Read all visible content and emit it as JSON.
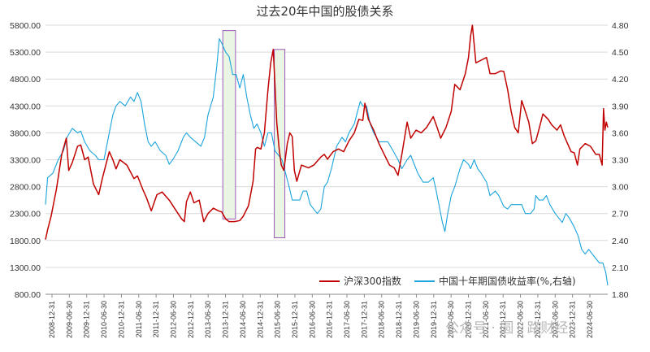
{
  "chart_data": {
    "type": "line",
    "title": "过去20年中国的股债关系",
    "y_left": {
      "ylim": [
        800,
        5800
      ],
      "ticks": [
        "800.00",
        "1300.00",
        "1800.00",
        "2300.00",
        "2800.00",
        "3300.00",
        "3800.00",
        "4300.00",
        "4800.00",
        "5300.00",
        "5800.00"
      ]
    },
    "y_right": {
      "ylim": [
        1.8,
        4.8
      ],
      "ticks": [
        "1.80",
        "2.10",
        "2.40",
        "2.70",
        "3.00",
        "3.30",
        "3.60",
        "3.90",
        "4.20",
        "4.50",
        "4.80"
      ]
    },
    "x_ticks": [
      "2008-12-31",
      "2009-06-30",
      "2009-12-31",
      "2010-06-30",
      "2010-12-31",
      "2011-06-30",
      "2011-12-31",
      "2012-06-30",
      "2012-12-31",
      "2013-06-30",
      "2013-12-31",
      "2014-06-30",
      "2014-12-31",
      "2015-06-30",
      "2015-12-31",
      "2016-06-30",
      "2016-12-31",
      "2017-06-30",
      "2017-12-31",
      "2018-06-30",
      "2018-12-31",
      "2019-06-30",
      "2019-12-31",
      "2020-06-30",
      "2020-12-31",
      "2021-06-30",
      "2021-12-31",
      "2022-06-30",
      "2022-12-31",
      "2023-06-30",
      "2023-12-31",
      "2024-06-30"
    ],
    "x_range": [
      2008.99,
      2024.94
    ],
    "grid": "horizontal",
    "legend_position": "bottom-right",
    "series": [
      {
        "name": "沪深300指数",
        "axis": "left",
        "color": "#c00000",
        "points": [
          [
            2008.99,
            1817
          ],
          [
            2009.05,
            2000
          ],
          [
            2009.15,
            2250
          ],
          [
            2009.3,
            2750
          ],
          [
            2009.45,
            3400
          ],
          [
            2009.58,
            3700
          ],
          [
            2009.65,
            3100
          ],
          [
            2009.75,
            3250
          ],
          [
            2009.9,
            3550
          ],
          [
            2009.99,
            3575
          ],
          [
            2010.1,
            3300
          ],
          [
            2010.2,
            3350
          ],
          [
            2010.35,
            2850
          ],
          [
            2010.5,
            2650
          ],
          [
            2010.6,
            2950
          ],
          [
            2010.8,
            3450
          ],
          [
            2010.9,
            3300
          ],
          [
            2010.99,
            3130
          ],
          [
            2011.1,
            3300
          ],
          [
            2011.3,
            3200
          ],
          [
            2011.5,
            2950
          ],
          [
            2011.6,
            3000
          ],
          [
            2011.75,
            2750
          ],
          [
            2011.85,
            2600
          ],
          [
            2011.99,
            2350
          ],
          [
            2012.15,
            2650
          ],
          [
            2012.3,
            2700
          ],
          [
            2012.5,
            2550
          ],
          [
            2012.7,
            2350
          ],
          [
            2012.85,
            2200
          ],
          [
            2012.93,
            2150
          ],
          [
            2012.99,
            2520
          ],
          [
            2013.1,
            2700
          ],
          [
            2013.2,
            2500
          ],
          [
            2013.35,
            2550
          ],
          [
            2013.48,
            2150
          ],
          [
            2013.6,
            2300
          ],
          [
            2013.75,
            2400
          ],
          [
            2013.9,
            2350
          ],
          [
            2013.99,
            2330
          ],
          [
            2014.1,
            2200
          ],
          [
            2014.2,
            2150
          ],
          [
            2014.35,
            2150
          ],
          [
            2014.5,
            2170
          ],
          [
            2014.6,
            2250
          ],
          [
            2014.75,
            2450
          ],
          [
            2014.88,
            2900
          ],
          [
            2014.95,
            3500
          ],
          [
            2015.0,
            3530
          ],
          [
            2015.1,
            3500
          ],
          [
            2015.2,
            3800
          ],
          [
            2015.3,
            4600
          ],
          [
            2015.38,
            5100
          ],
          [
            2015.45,
            5350
          ],
          [
            2015.5,
            4700
          ],
          [
            2015.55,
            4000
          ],
          [
            2015.62,
            3500
          ],
          [
            2015.68,
            3200
          ],
          [
            2015.75,
            3100
          ],
          [
            2015.85,
            3600
          ],
          [
            2015.92,
            3800
          ],
          [
            2015.99,
            3730
          ],
          [
            2016.05,
            3100
          ],
          [
            2016.12,
            2900
          ],
          [
            2016.25,
            3200
          ],
          [
            2016.45,
            3150
          ],
          [
            2016.6,
            3200
          ],
          [
            2016.8,
            3350
          ],
          [
            2016.9,
            3400
          ],
          [
            2016.99,
            3310
          ],
          [
            2017.15,
            3450
          ],
          [
            2017.3,
            3500
          ],
          [
            2017.45,
            3450
          ],
          [
            2017.6,
            3650
          ],
          [
            2017.75,
            3800
          ],
          [
            2017.88,
            4050
          ],
          [
            2017.99,
            4030
          ],
          [
            2018.05,
            4350
          ],
          [
            2018.15,
            4050
          ],
          [
            2018.3,
            3850
          ],
          [
            2018.45,
            3600
          ],
          [
            2018.6,
            3400
          ],
          [
            2018.75,
            3200
          ],
          [
            2018.88,
            3150
          ],
          [
            2018.99,
            3010
          ],
          [
            2019.1,
            3400
          ],
          [
            2019.25,
            4000
          ],
          [
            2019.35,
            3700
          ],
          [
            2019.5,
            3850
          ],
          [
            2019.65,
            3800
          ],
          [
            2019.8,
            3900
          ],
          [
            2019.99,
            4100
          ],
          [
            2020.1,
            3900
          ],
          [
            2020.2,
            3700
          ],
          [
            2020.35,
            3900
          ],
          [
            2020.5,
            4200
          ],
          [
            2020.6,
            4700
          ],
          [
            2020.75,
            4600
          ],
          [
            2020.9,
            4900
          ],
          [
            2020.99,
            5200
          ],
          [
            2021.05,
            5600
          ],
          [
            2021.1,
            5800
          ],
          [
            2021.2,
            5100
          ],
          [
            2021.35,
            5150
          ],
          [
            2021.5,
            5200
          ],
          [
            2021.6,
            4900
          ],
          [
            2021.75,
            4900
          ],
          [
            2021.9,
            4950
          ],
          [
            2021.99,
            4940
          ],
          [
            2022.1,
            4600
          ],
          [
            2022.2,
            4200
          ],
          [
            2022.3,
            3900
          ],
          [
            2022.4,
            3800
          ],
          [
            2022.5,
            4400
          ],
          [
            2022.6,
            4200
          ],
          [
            2022.7,
            4000
          ],
          [
            2022.8,
            3600
          ],
          [
            2022.9,
            3650
          ],
          [
            2022.99,
            3870
          ],
          [
            2023.1,
            4150
          ],
          [
            2023.25,
            4050
          ],
          [
            2023.35,
            3950
          ],
          [
            2023.5,
            3850
          ],
          [
            2023.6,
            3950
          ],
          [
            2023.7,
            3750
          ],
          [
            2023.8,
            3600
          ],
          [
            2023.9,
            3450
          ],
          [
            2023.99,
            3430
          ],
          [
            2024.08,
            3200
          ],
          [
            2024.15,
            3500
          ],
          [
            2024.3,
            3600
          ],
          [
            2024.45,
            3550
          ],
          [
            2024.6,
            3400
          ],
          [
            2024.7,
            3400
          ],
          [
            2024.78,
            3200
          ],
          [
            2024.82,
            4250
          ],
          [
            2024.86,
            3850
          ],
          [
            2024.9,
            4000
          ],
          [
            2024.94,
            3900
          ]
        ]
      },
      {
        "name": "中国十年期国债收益率(%,右轴)",
        "axis": "right",
        "color": "#1aa3dc",
        "points": [
          [
            2008.99,
            2.8
          ],
          [
            2009.05,
            3.1
          ],
          [
            2009.2,
            3.15
          ],
          [
            2009.35,
            3.3
          ],
          [
            2009.5,
            3.4
          ],
          [
            2009.6,
            3.55
          ],
          [
            2009.75,
            3.65
          ],
          [
            2009.9,
            3.6
          ],
          [
            2009.99,
            3.62
          ],
          [
            2010.1,
            3.5
          ],
          [
            2010.25,
            3.4
          ],
          [
            2010.4,
            3.35
          ],
          [
            2010.5,
            3.3
          ],
          [
            2010.65,
            3.3
          ],
          [
            2010.8,
            3.6
          ],
          [
            2010.9,
            3.8
          ],
          [
            2010.99,
            3.9
          ],
          [
            2011.1,
            3.95
          ],
          [
            2011.25,
            3.9
          ],
          [
            2011.4,
            4.0
          ],
          [
            2011.5,
            3.95
          ],
          [
            2011.6,
            4.05
          ],
          [
            2011.7,
            3.95
          ],
          [
            2011.8,
            3.7
          ],
          [
            2011.9,
            3.5
          ],
          [
            2011.99,
            3.45
          ],
          [
            2012.1,
            3.5
          ],
          [
            2012.25,
            3.4
          ],
          [
            2012.4,
            3.35
          ],
          [
            2012.5,
            3.25
          ],
          [
            2012.6,
            3.3
          ],
          [
            2012.75,
            3.4
          ],
          [
            2012.9,
            3.55
          ],
          [
            2012.99,
            3.6
          ],
          [
            2013.1,
            3.55
          ],
          [
            2013.25,
            3.5
          ],
          [
            2013.4,
            3.45
          ],
          [
            2013.5,
            3.55
          ],
          [
            2013.6,
            3.8
          ],
          [
            2013.75,
            4.0
          ],
          [
            2013.85,
            4.35
          ],
          [
            2013.92,
            4.65
          ],
          [
            2013.99,
            4.6
          ],
          [
            2014.1,
            4.5
          ],
          [
            2014.2,
            4.45
          ],
          [
            2014.3,
            4.25
          ],
          [
            2014.4,
            4.25
          ],
          [
            2014.5,
            4.1
          ],
          [
            2014.6,
            4.25
          ],
          [
            2014.7,
            4.0
          ],
          [
            2014.8,
            3.8
          ],
          [
            2014.9,
            3.65
          ],
          [
            2014.99,
            3.7
          ],
          [
            2015.1,
            3.6
          ],
          [
            2015.2,
            3.45
          ],
          [
            2015.3,
            3.6
          ],
          [
            2015.4,
            3.6
          ],
          [
            2015.5,
            3.4
          ],
          [
            2015.6,
            3.35
          ],
          [
            2015.7,
            3.3
          ],
          [
            2015.8,
            3.15
          ],
          [
            2015.9,
            3.0
          ],
          [
            2015.99,
            2.85
          ],
          [
            2016.1,
            2.85
          ],
          [
            2016.2,
            2.85
          ],
          [
            2016.3,
            2.95
          ],
          [
            2016.4,
            2.95
          ],
          [
            2016.5,
            2.8
          ],
          [
            2016.6,
            2.75
          ],
          [
            2016.7,
            2.7
          ],
          [
            2016.8,
            2.75
          ],
          [
            2016.9,
            3.0
          ],
          [
            2016.99,
            3.05
          ],
          [
            2017.1,
            3.2
          ],
          [
            2017.25,
            3.45
          ],
          [
            2017.4,
            3.55
          ],
          [
            2017.5,
            3.5
          ],
          [
            2017.6,
            3.6
          ],
          [
            2017.75,
            3.7
          ],
          [
            2017.85,
            3.85
          ],
          [
            2017.92,
            3.95
          ],
          [
            2017.99,
            3.9
          ],
          [
            2018.1,
            3.9
          ],
          [
            2018.2,
            3.7
          ],
          [
            2018.3,
            3.6
          ],
          [
            2018.45,
            3.5
          ],
          [
            2018.55,
            3.5
          ],
          [
            2018.7,
            3.5
          ],
          [
            2018.85,
            3.4
          ],
          [
            2018.99,
            3.3
          ],
          [
            2019.1,
            3.2
          ],
          [
            2019.25,
            3.3
          ],
          [
            2019.35,
            3.35
          ],
          [
            2019.45,
            3.25
          ],
          [
            2019.55,
            3.15
          ],
          [
            2019.7,
            3.05
          ],
          [
            2019.85,
            3.05
          ],
          [
            2019.99,
            3.1
          ],
          [
            2020.05,
            3.0
          ],
          [
            2020.15,
            2.8
          ],
          [
            2020.25,
            2.6
          ],
          [
            2020.32,
            2.5
          ],
          [
            2020.4,
            2.7
          ],
          [
            2020.5,
            2.9
          ],
          [
            2020.6,
            3.0
          ],
          [
            2020.75,
            3.2
          ],
          [
            2020.85,
            3.3
          ],
          [
            2020.99,
            3.25
          ],
          [
            2021.05,
            3.2
          ],
          [
            2021.15,
            3.3
          ],
          [
            2021.25,
            3.2
          ],
          [
            2021.35,
            3.15
          ],
          [
            2021.5,
            3.05
          ],
          [
            2021.6,
            2.9
          ],
          [
            2021.75,
            2.95
          ],
          [
            2021.85,
            2.9
          ],
          [
            2021.99,
            2.78
          ],
          [
            2022.1,
            2.75
          ],
          [
            2022.2,
            2.8
          ],
          [
            2022.35,
            2.8
          ],
          [
            2022.5,
            2.8
          ],
          [
            2022.6,
            2.7
          ],
          [
            2022.75,
            2.7
          ],
          [
            2022.85,
            2.75
          ],
          [
            2022.9,
            2.9
          ],
          [
            2022.99,
            2.85
          ],
          [
            2023.1,
            2.85
          ],
          [
            2023.2,
            2.9
          ],
          [
            2023.3,
            2.8
          ],
          [
            2023.45,
            2.7
          ],
          [
            2023.55,
            2.65
          ],
          [
            2023.65,
            2.6
          ],
          [
            2023.75,
            2.7
          ],
          [
            2023.85,
            2.65
          ],
          [
            2023.99,
            2.55
          ],
          [
            2024.1,
            2.45
          ],
          [
            2024.2,
            2.3
          ],
          [
            2024.3,
            2.25
          ],
          [
            2024.4,
            2.3
          ],
          [
            2024.5,
            2.25
          ],
          [
            2024.6,
            2.2
          ],
          [
            2024.7,
            2.15
          ],
          [
            2024.8,
            2.15
          ],
          [
            2024.88,
            2.05
          ],
          [
            2024.94,
            1.9
          ]
        ]
      }
    ],
    "highlight_boxes": [
      {
        "x_start": 2014.02,
        "x_end": 2014.38,
        "y_top": 5700,
        "y_bottom": 2200,
        "fill": "#eaf5e4",
        "stroke": "#9b59b6"
      },
      {
        "x_start": 2015.48,
        "x_end": 2015.78,
        "y_top": 5350,
        "y_bottom": 1850,
        "fill": "#eaf5e4",
        "stroke": "#9b59b6"
      }
    ]
  },
  "watermark": "公众号 · 圆 · 路财经"
}
